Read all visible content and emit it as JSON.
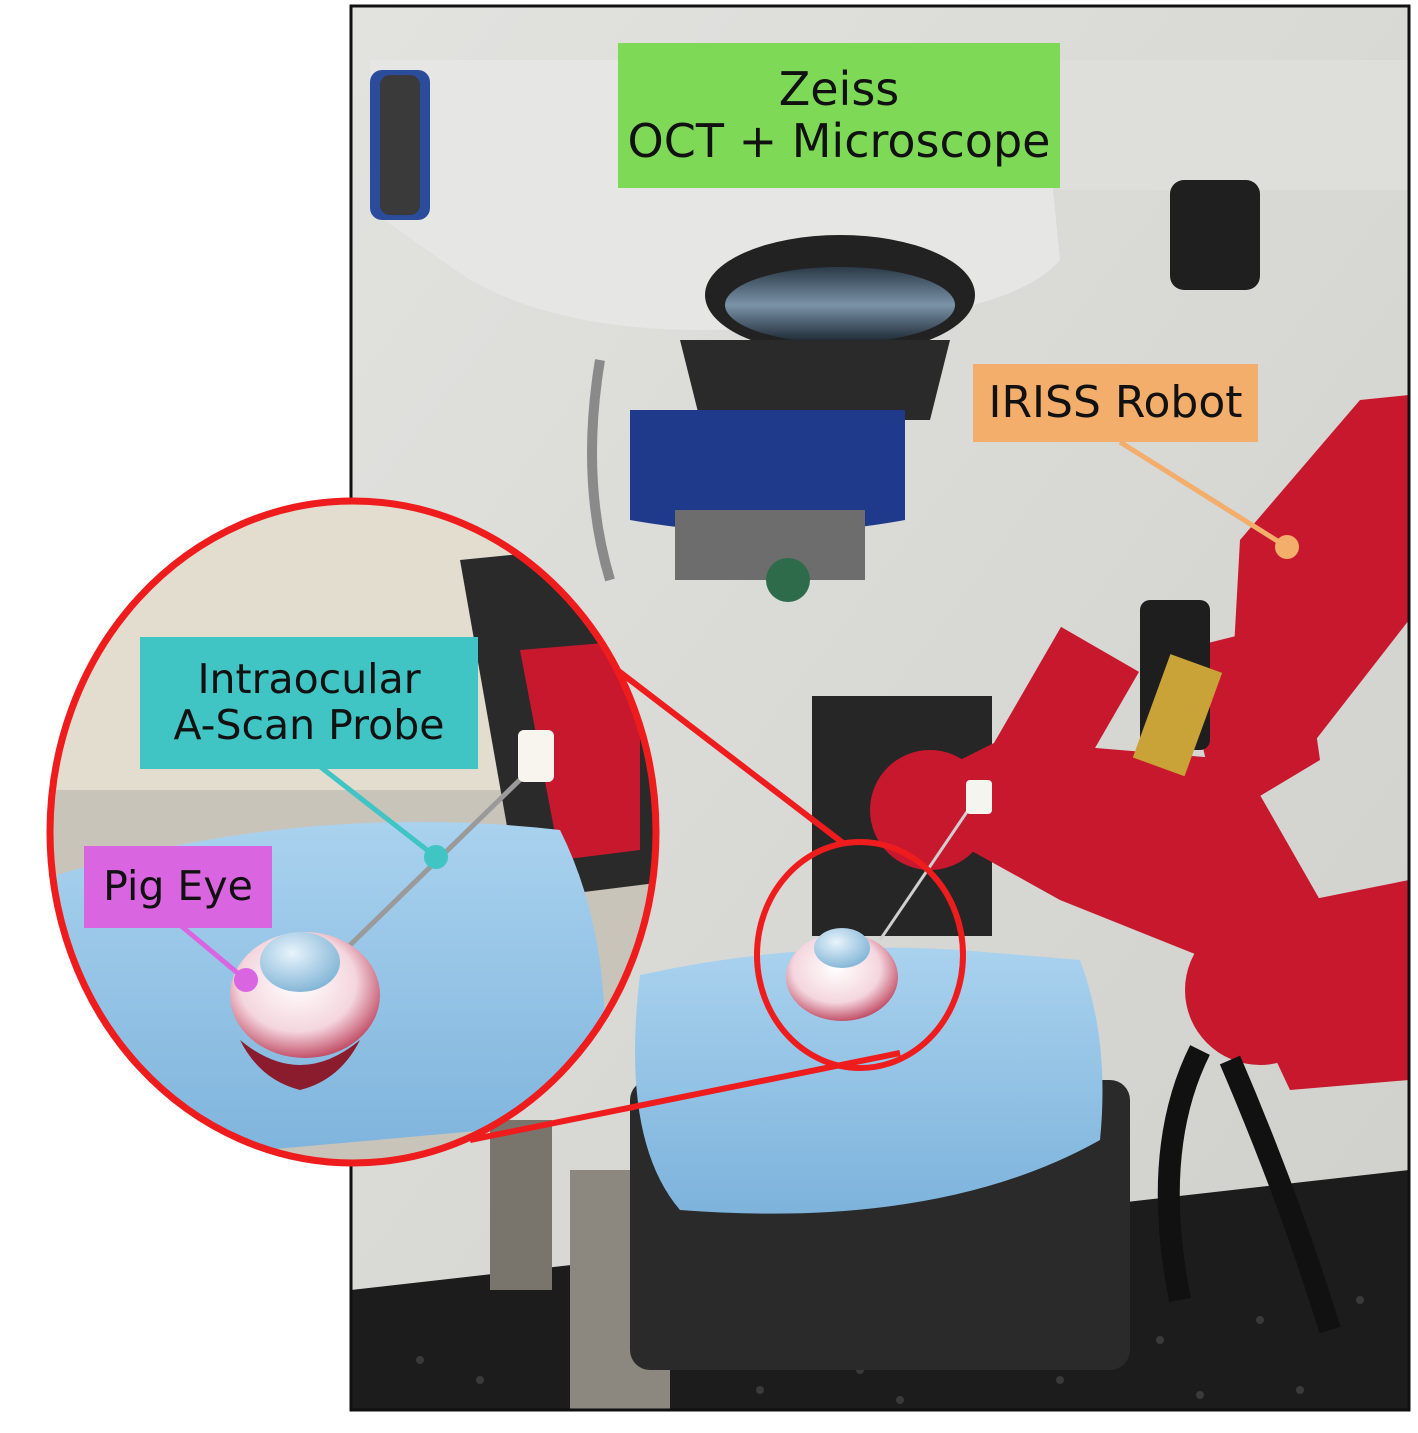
{
  "labels": {
    "microscope": {
      "line1": "Zeiss",
      "line2": "OCT + Microscope",
      "color": "#7ed957"
    },
    "robot": {
      "text": "IRISS Robot",
      "color": "#f2ae6a"
    },
    "probe": {
      "line1": "Intraocular",
      "line2": "A-Scan Probe",
      "color": "#40c4c4"
    },
    "eye": {
      "text": "Pig Eye",
      "color": "#d966e0"
    }
  },
  "colors": {
    "zoom_outline": "#ee1c1c",
    "robot_red": "#c8182e",
    "microscope_white": "#e6e6e4",
    "microscope_blue": "#1f3a8a",
    "drape_blue": "#8fc3e6",
    "background_wall": "#d9d9d6",
    "table_black": "#1c1c1c"
  }
}
